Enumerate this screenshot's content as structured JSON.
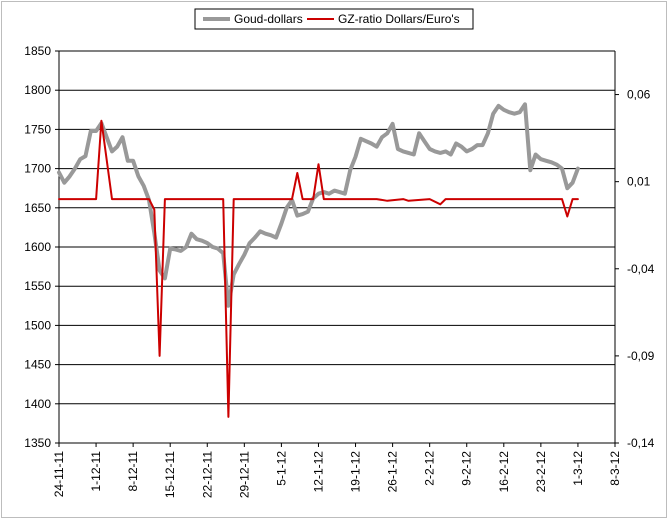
{
  "chart_data": {
    "type": "line",
    "title": "",
    "legend": {
      "placement": "top-center",
      "entries": [
        "Goud-dollars",
        "GZ-ratio Dollars/Euro's"
      ]
    },
    "grid": true,
    "x_labels": [
      "24-11-11",
      "1-12-11",
      "8-12-11",
      "15-12-11",
      "22-12-11",
      "29-12-11",
      "5-1-12",
      "12-1-12",
      "19-1-12",
      "26-1-12",
      "2-2-12",
      "9-2-12",
      "16-2-12",
      "23-2-12",
      "1-3-12",
      "8-3-12"
    ],
    "x_range": [
      0,
      105
    ],
    "y_left": {
      "min": 1350,
      "max": 1850,
      "ticks": [
        "1350",
        "1400",
        "1450",
        "1500",
        "1550",
        "1600",
        "1650",
        "1700",
        "1750",
        "1800",
        "1850"
      ]
    },
    "y_right": {
      "min": -0.14,
      "max": 0.085,
      "ticks": [
        {
          "value": 0.06,
          "label": "0,06"
        },
        {
          "value": 0.01,
          "label": "0,01"
        },
        {
          "value": -0.04,
          "label": "-0,04"
        },
        {
          "value": -0.09,
          "label": "-0,09"
        },
        {
          "value": -0.14,
          "label": "-0,14"
        }
      ]
    },
    "series": [
      {
        "name": "Goud-dollars",
        "axis": "left",
        "color": "#999999",
        "points": [
          [
            0,
            1695
          ],
          [
            1,
            1682
          ],
          [
            2,
            1690
          ],
          [
            3,
            1700
          ],
          [
            4,
            1712
          ],
          [
            5,
            1716
          ],
          [
            6,
            1748
          ],
          [
            7,
            1748
          ],
          [
            8,
            1758
          ],
          [
            9,
            1740
          ],
          [
            10,
            1722
          ],
          [
            11,
            1728
          ],
          [
            12,
            1740
          ],
          [
            13,
            1710
          ],
          [
            14,
            1710
          ],
          [
            15,
            1690
          ],
          [
            16,
            1678
          ],
          [
            17,
            1660
          ],
          [
            18,
            1618
          ],
          [
            19,
            1570
          ],
          [
            20,
            1560
          ],
          [
            21,
            1598
          ],
          [
            22,
            1597
          ],
          [
            23,
            1595
          ],
          [
            24,
            1600
          ],
          [
            25,
            1617
          ],
          [
            26,
            1610
          ],
          [
            27,
            1608
          ],
          [
            28,
            1605
          ],
          [
            29,
            1600
          ],
          [
            30,
            1598
          ],
          [
            31,
            1592
          ],
          [
            32,
            1525
          ],
          [
            33,
            1565
          ],
          [
            34,
            1578
          ],
          [
            35,
            1590
          ],
          [
            36,
            1605
          ],
          [
            37,
            1612
          ],
          [
            38,
            1620
          ],
          [
            39,
            1617
          ],
          [
            40,
            1615
          ],
          [
            41,
            1612
          ],
          [
            42,
            1630
          ],
          [
            43,
            1650
          ],
          [
            44,
            1660
          ],
          [
            45,
            1640
          ],
          [
            46,
            1642
          ],
          [
            47,
            1645
          ],
          [
            48,
            1662
          ],
          [
            49,
            1668
          ],
          [
            50,
            1670
          ],
          [
            51,
            1668
          ],
          [
            52,
            1672
          ],
          [
            53,
            1670
          ],
          [
            54,
            1668
          ],
          [
            55,
            1698
          ],
          [
            56,
            1715
          ],
          [
            57,
            1738
          ],
          [
            58,
            1735
          ],
          [
            59,
            1732
          ],
          [
            60,
            1728
          ],
          [
            61,
            1740
          ],
          [
            62,
            1745
          ],
          [
            63,
            1757
          ],
          [
            64,
            1725
          ],
          [
            65,
            1722
          ],
          [
            66,
            1720
          ],
          [
            67,
            1718
          ],
          [
            68,
            1745
          ],
          [
            69,
            1735
          ],
          [
            70,
            1725
          ],
          [
            71,
            1722
          ],
          [
            72,
            1720
          ],
          [
            73,
            1722
          ],
          [
            74,
            1718
          ],
          [
            75,
            1732
          ],
          [
            76,
            1728
          ],
          [
            77,
            1722
          ],
          [
            78,
            1725
          ],
          [
            79,
            1730
          ],
          [
            80,
            1730
          ],
          [
            81,
            1745
          ],
          [
            82,
            1770
          ],
          [
            83,
            1780
          ],
          [
            84,
            1775
          ],
          [
            85,
            1772
          ],
          [
            86,
            1770
          ],
          [
            87,
            1772
          ],
          [
            88,
            1782
          ],
          [
            89,
            1698
          ],
          [
            90,
            1718
          ],
          [
            91,
            1712
          ],
          [
            92,
            1710
          ],
          [
            93,
            1708
          ],
          [
            94,
            1705
          ],
          [
            95,
            1700
          ],
          [
            96,
            1675
          ],
          [
            97,
            1682
          ],
          [
            98,
            1700
          ]
        ]
      },
      {
        "name": "GZ-ratio Dollars/Euro's",
        "axis": "right",
        "color": "#cc0000",
        "points": [
          [
            0,
            0.0
          ],
          [
            7,
            0.0
          ],
          [
            8,
            0.045
          ],
          [
            10,
            0.0
          ],
          [
            12,
            0.0
          ],
          [
            17,
            0.0
          ],
          [
            18,
            -0.006
          ],
          [
            19,
            -0.09
          ],
          [
            20,
            0.0
          ],
          [
            31,
            0.0
          ],
          [
            32,
            -0.125
          ],
          [
            33,
            0.0
          ],
          [
            44,
            0.0
          ],
          [
            45,
            0.015
          ],
          [
            46,
            0.0
          ],
          [
            48,
            0.0
          ],
          [
            49,
            0.02
          ],
          [
            50,
            0.0
          ],
          [
            60,
            0.0
          ],
          [
            62,
            -0.001
          ],
          [
            65,
            0.0
          ],
          [
            66,
            -0.001
          ],
          [
            70,
            0.0
          ],
          [
            72,
            -0.003
          ],
          [
            73,
            0.0
          ],
          [
            90,
            0.0
          ],
          [
            95,
            0.0
          ],
          [
            96,
            -0.01
          ],
          [
            97,
            0.0
          ],
          [
            98,
            0.0
          ]
        ]
      }
    ]
  }
}
